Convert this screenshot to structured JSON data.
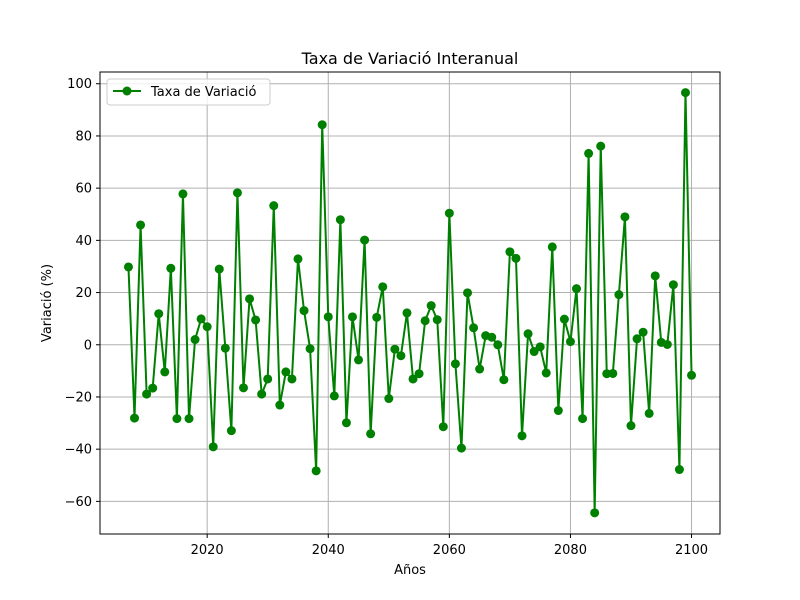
{
  "chart_data": {
    "type": "line",
    "title": "Taxa de Variació Interanual",
    "xlabel": "Años",
    "ylabel": "Variació (%)",
    "xlim": [
      2002.3,
      2104.7
    ],
    "ylim": [
      -72.5,
      104.5
    ],
    "xticks": [
      2020,
      2040,
      2060,
      2080,
      2100
    ],
    "yticks": [
      -60,
      -40,
      -20,
      0,
      20,
      40,
      60,
      80,
      100
    ],
    "grid": true,
    "legend_position": "top-left",
    "series": [
      {
        "name": "Taxa de Variació",
        "color": "#008000",
        "marker": "circle",
        "x": [
          2007,
          2008,
          2009,
          2010,
          2011,
          2012,
          2013,
          2014,
          2015,
          2016,
          2017,
          2018,
          2019,
          2020,
          2021,
          2022,
          2023,
          2024,
          2025,
          2026,
          2027,
          2028,
          2029,
          2030,
          2031,
          2032,
          2033,
          2034,
          2035,
          2036,
          2037,
          2038,
          2039,
          2040,
          2041,
          2042,
          2043,
          2044,
          2045,
          2046,
          2047,
          2048,
          2049,
          2050,
          2051,
          2052,
          2053,
          2054,
          2055,
          2056,
          2057,
          2058,
          2059,
          2060,
          2061,
          2062,
          2063,
          2064,
          2065,
          2066,
          2067,
          2068,
          2069,
          2070,
          2071,
          2072,
          2073,
          2074,
          2075,
          2076,
          2077,
          2078,
          2079,
          2080,
          2081,
          2082,
          2083,
          2084,
          2085,
          2086,
          2087,
          2088,
          2089,
          2090,
          2091,
          2092,
          2093,
          2094,
          2095,
          2096,
          2097,
          2098,
          2099,
          2100
        ],
        "values": [
          29.8,
          -28.1,
          45.9,
          -18.9,
          -16.6,
          11.9,
          -10.4,
          29.3,
          -28.3,
          57.8,
          -28.3,
          2.0,
          9.9,
          6.9,
          -39.1,
          29.0,
          -1.3,
          -32.9,
          58.2,
          -16.5,
          17.6,
          9.5,
          -18.9,
          -13.1,
          53.3,
          -23.1,
          -10.4,
          -13.1,
          32.9,
          13.1,
          -1.5,
          -48.3,
          84.3,
          10.7,
          -19.6,
          47.9,
          -29.9,
          10.7,
          -5.8,
          40.1,
          -34.1,
          10.5,
          22.2,
          -20.6,
          -1.7,
          -4.2,
          12.2,
          -13.1,
          -11.1,
          9.2,
          15.0,
          9.6,
          -31.4,
          50.4,
          -7.3,
          -39.6,
          19.9,
          6.5,
          -9.3,
          3.5,
          2.9,
          0.0,
          -13.4,
          35.6,
          33.1,
          -34.9,
          4.2,
          -2.6,
          -0.8,
          -10.8,
          37.5,
          -25.2,
          9.8,
          1.2,
          21.5,
          -28.3,
          73.3,
          -64.4,
          76.1,
          -11.1,
          -11.0,
          19.2,
          49.0,
          -31.0,
          2.3,
          4.8,
          -26.3,
          26.4,
          0.9,
          0.1,
          23.0,
          -47.8,
          96.6,
          -11.7
        ]
      }
    ]
  }
}
